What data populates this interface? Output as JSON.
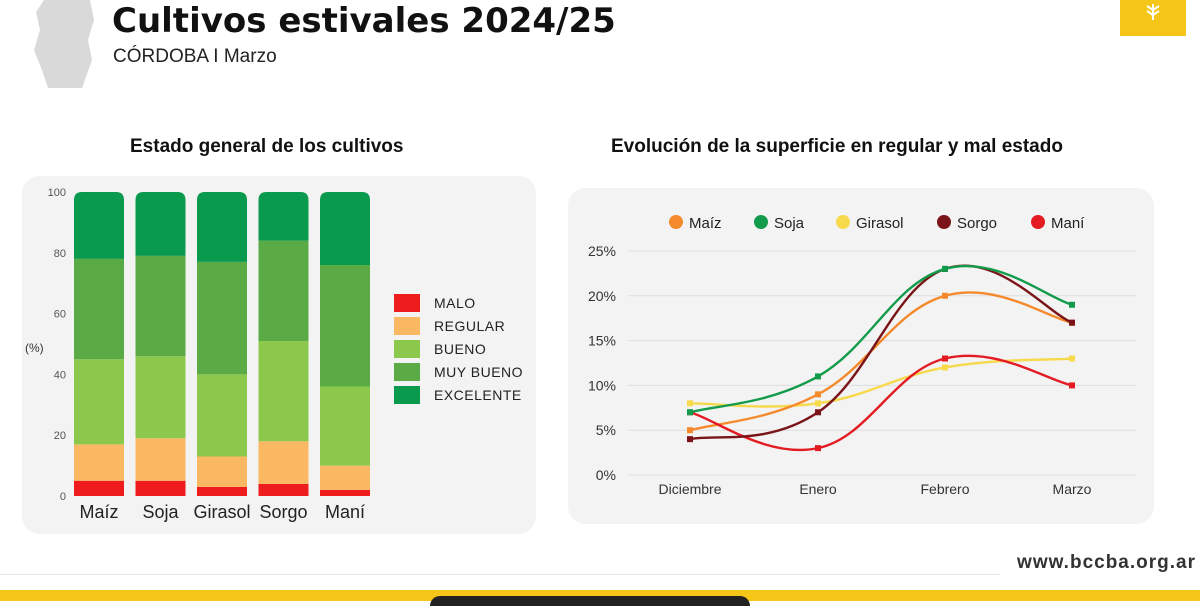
{
  "header": {
    "title": "Cultivos estivales 2024/25",
    "subtitle": "CÓRDOBA I Marzo"
  },
  "footer": {
    "url": "www.bccba.org.ar"
  },
  "colors": {
    "malo": "#ee1c1c",
    "regular": "#fbb862",
    "bueno": "#8cc84b",
    "muy_bueno": "#5aab45",
    "excelente": "#0a9a4e",
    "maiz": "#f58a2c",
    "soja": "#129b4a",
    "girasol": "#f7d94c",
    "sorgo": "#7a1418",
    "mani": "#e31b23",
    "accent": "#f5c518"
  },
  "chart_data": [
    {
      "type": "bar",
      "stacked": true,
      "title": "Estado general de los cultivos",
      "ylabel": "(%)",
      "ylim": [
        0,
        100
      ],
      "yticks": [
        "0",
        "20",
        "40",
        "60",
        "80",
        "100"
      ],
      "categories": [
        "Maíz",
        "Soja",
        "Girasol",
        "Sorgo",
        "Maní"
      ],
      "legend_position": "right",
      "series": [
        {
          "name": "MALO",
          "key": "malo",
          "values": [
            5,
            5,
            3,
            4,
            2
          ]
        },
        {
          "name": "REGULAR",
          "key": "regular",
          "values": [
            12,
            14,
            10,
            14,
            8
          ]
        },
        {
          "name": "BUENO",
          "key": "bueno",
          "values": [
            28,
            27,
            27,
            33,
            26
          ]
        },
        {
          "name": "MUY BUENO",
          "key": "muy_bueno",
          "values": [
            33,
            33,
            37,
            33,
            40
          ]
        },
        {
          "name": "EXCELENTE",
          "key": "excelente",
          "values": [
            22,
            21,
            23,
            16,
            24
          ]
        }
      ]
    },
    {
      "type": "line",
      "title": "Evolución de la superficie en regular y mal estado",
      "categories": [
        "Diciembre",
        "Enero",
        "Febrero",
        "Marzo"
      ],
      "ylim": [
        0,
        25
      ],
      "yticks": [
        "0%",
        "5%",
        "10%",
        "15%",
        "20%",
        "25%"
      ],
      "legend_position": "top",
      "grid": true,
      "series": [
        {
          "name": "Maíz",
          "key": "maiz",
          "values": [
            5,
            9,
            20,
            17
          ]
        },
        {
          "name": "Soja",
          "key": "soja",
          "values": [
            7,
            11,
            23,
            19
          ]
        },
        {
          "name": "Girasol",
          "key": "girasol",
          "values": [
            8,
            8,
            12,
            13
          ]
        },
        {
          "name": "Sorgo",
          "key": "sorgo",
          "values": [
            4,
            7,
            23,
            17
          ]
        },
        {
          "name": "Maní",
          "key": "mani",
          "values": [
            7,
            3,
            13,
            10
          ]
        }
      ]
    }
  ]
}
